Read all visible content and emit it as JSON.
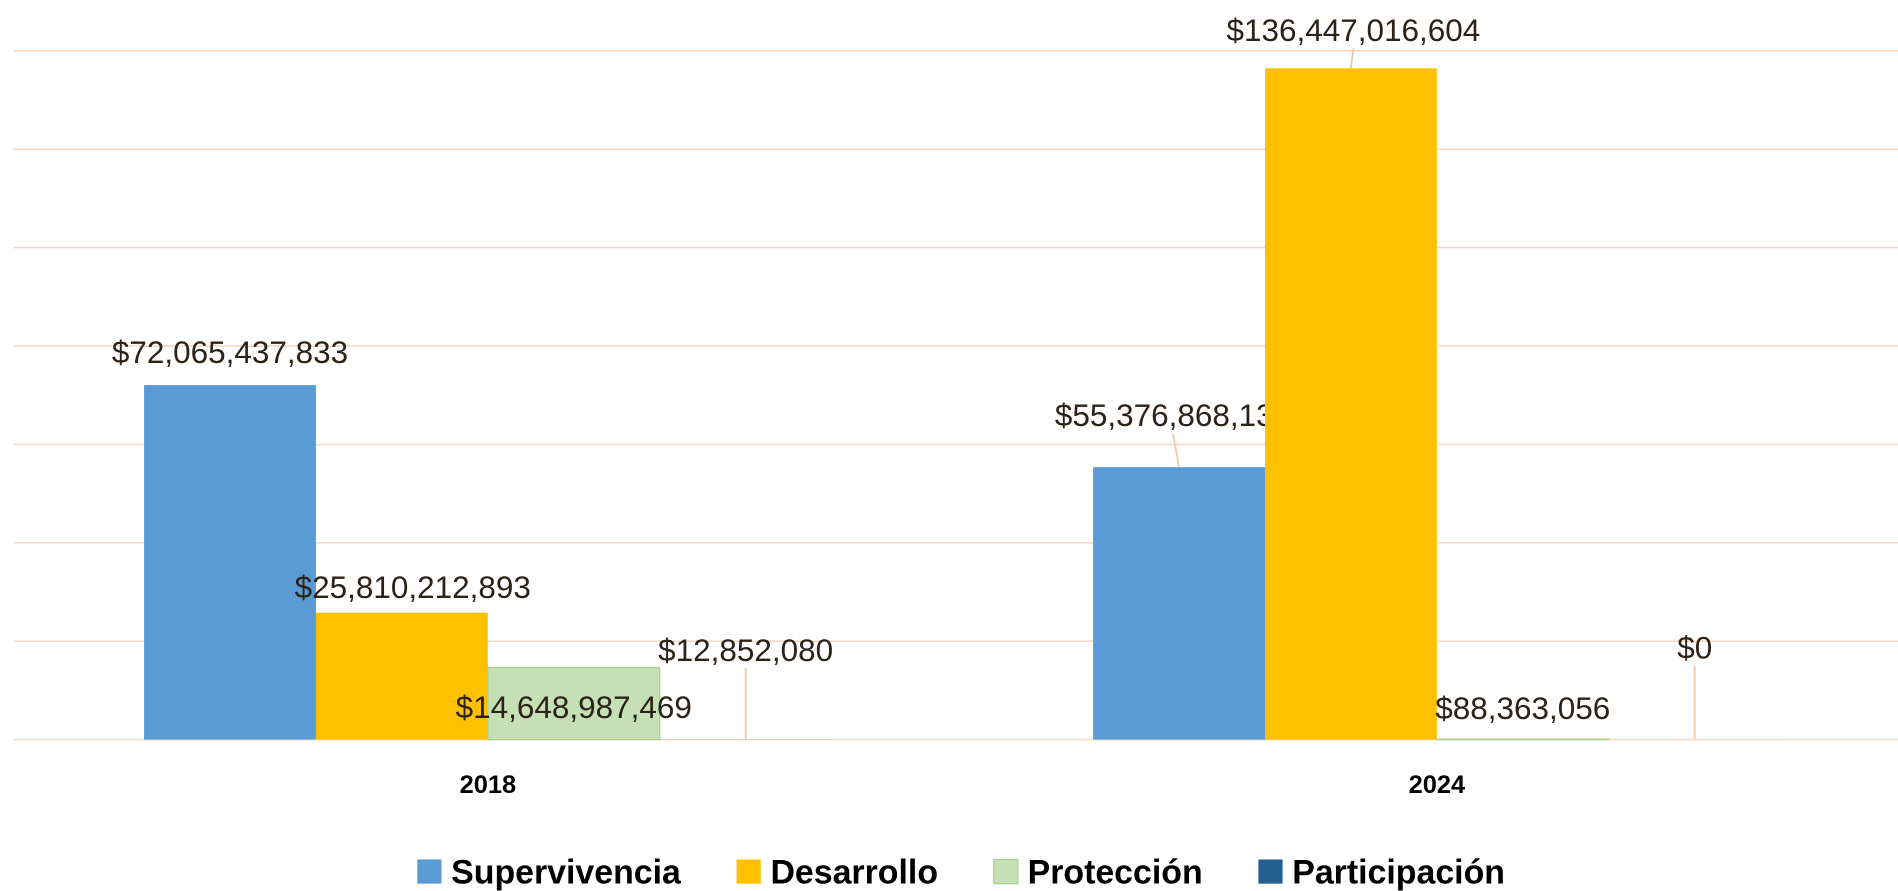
{
  "chart_data": {
    "type": "bar",
    "categories": [
      "2018",
      "2024"
    ],
    "series": [
      {
        "name": "Supervivencia",
        "color": "#5b9bd5",
        "values": [
          72065437833,
          55376868132
        ],
        "value_labels": [
          "$72,065,437,833",
          "$55,376,868,132"
        ]
      },
      {
        "name": "Desarrollo",
        "color": "#ffc000",
        "values": [
          25810212893,
          136447016604
        ],
        "value_labels": [
          "$25,810,212,893",
          "$136,447,016,604"
        ]
      },
      {
        "name": "Protección",
        "color": "#c5e0b4",
        "values": [
          14648987469,
          88363056
        ],
        "value_labels": [
          "$14,648,987,469",
          "$88,363,056"
        ]
      },
      {
        "name": "Participación",
        "color": "#255e91",
        "values": [
          12852080,
          0
        ],
        "value_labels": [
          "$12,852,080",
          "$0"
        ]
      }
    ],
    "ylim": [
      0,
      140000000000
    ],
    "yticks": [
      0,
      20000000000,
      40000000000,
      60000000000,
      80000000000,
      100000000000,
      120000000000,
      140000000000
    ],
    "grid": true,
    "legend": "bottom"
  }
}
